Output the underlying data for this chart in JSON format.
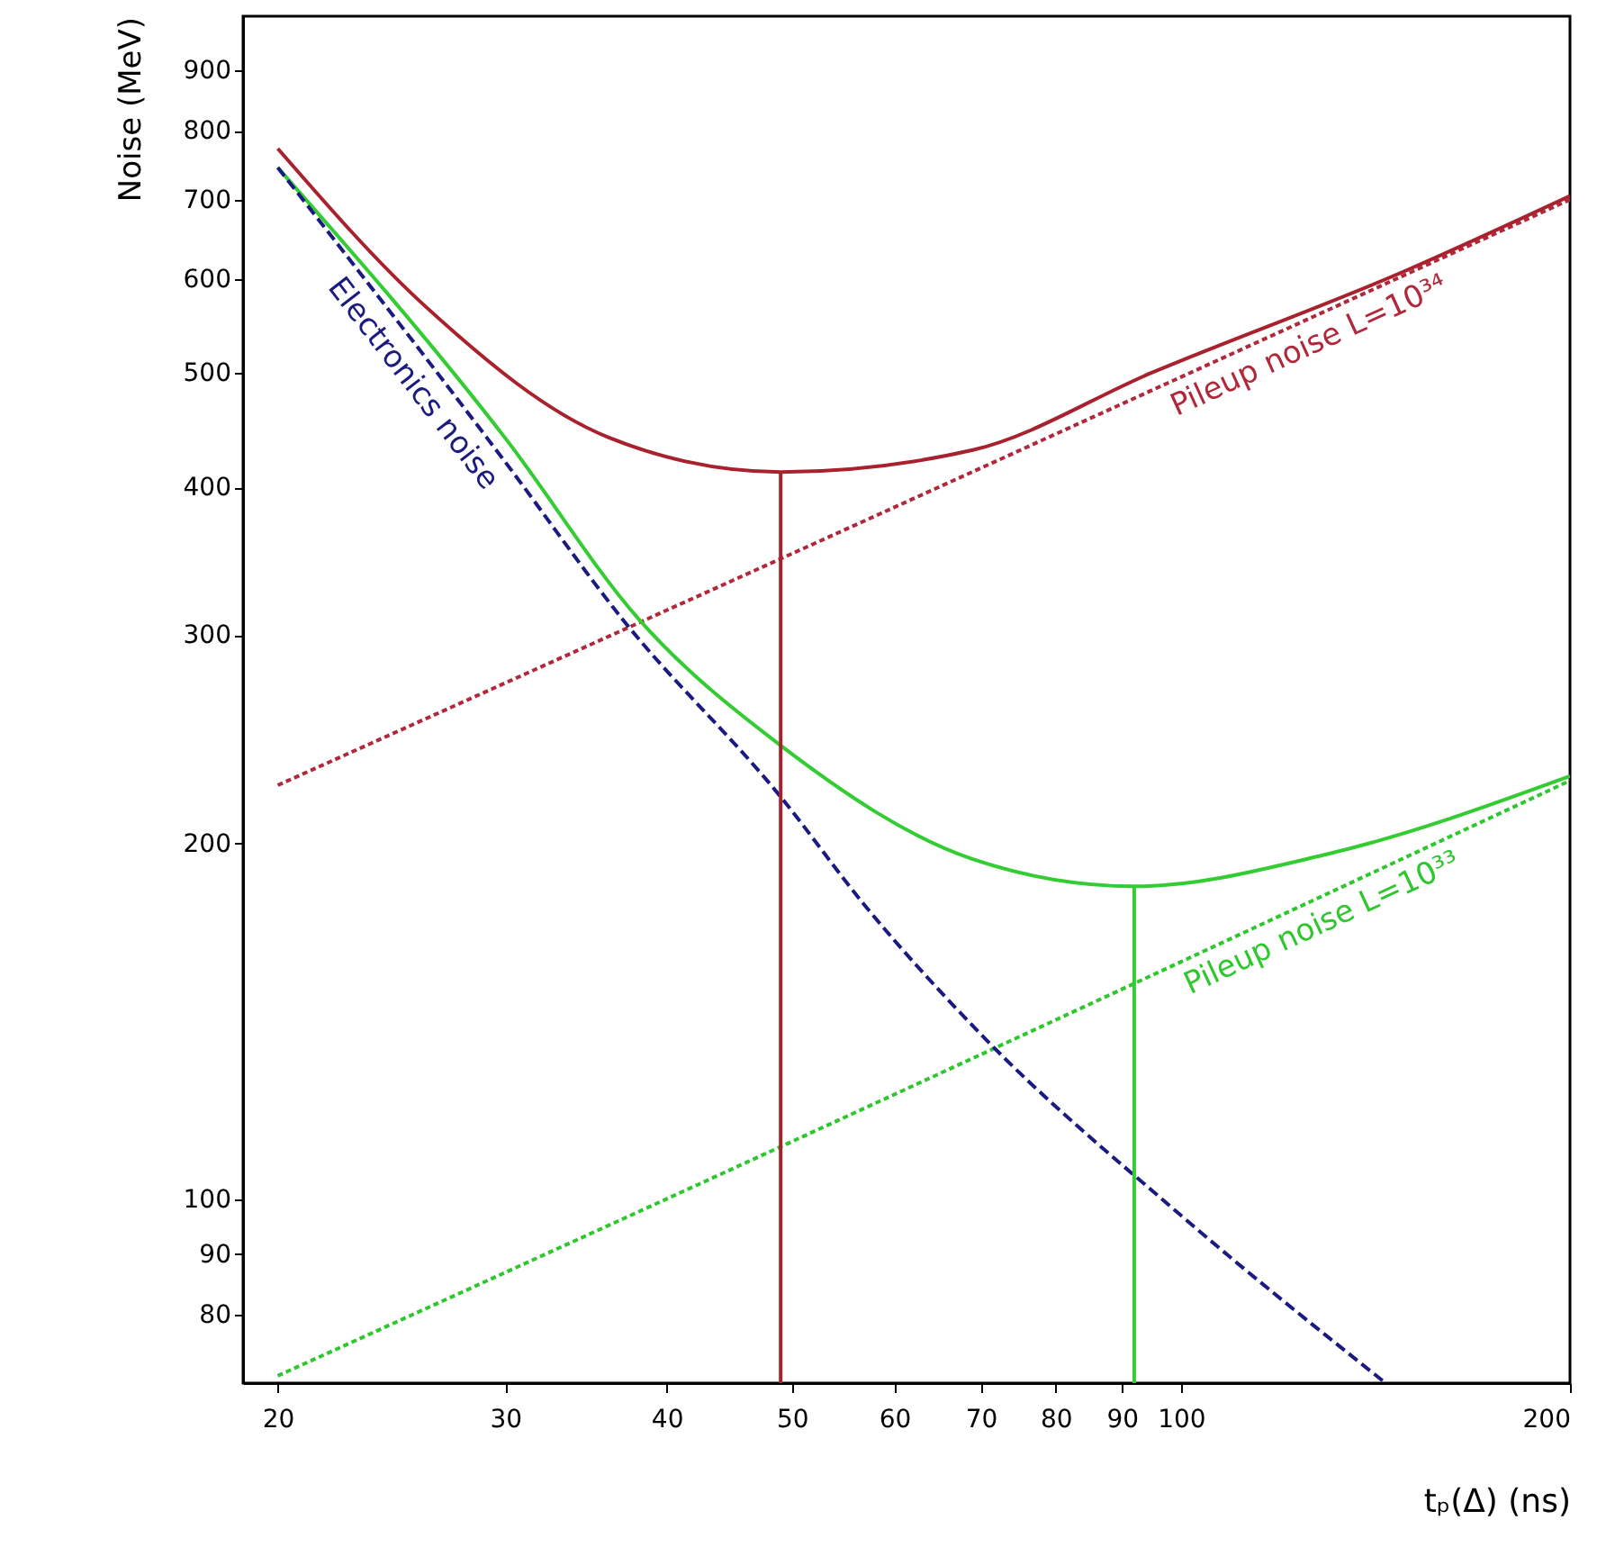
{
  "chart_data": {
    "type": "line",
    "xlabel": "tₚ(Δ) (ns)",
    "ylabel": "Noise (MeV)",
    "log": "xy",
    "grid": false,
    "xlim": [
      18.8,
      200
    ],
    "xticks": [
      20,
      30,
      40,
      50,
      60,
      70,
      80,
      90,
      100,
      200
    ],
    "ylim": [
      70,
      1000
    ],
    "yticks": [
      80,
      90,
      100,
      200,
      300,
      400,
      500,
      600,
      700,
      800,
      900
    ],
    "series": [
      {
        "color": "#a8222e",
        "line_style": "solid",
        "x": [
          20,
          26,
          36,
          49,
          69,
          95,
          150,
          200
        ],
        "values": [
          773,
          569,
          441,
          412,
          430,
          500,
          611,
          705
        ]
      },
      {
        "name": "Pileup noise L=10³⁴",
        "color": "#b0283a",
        "line_style": "dotted",
        "x": [
          20,
          49,
          200
        ],
        "values": [
          224,
          348,
          700
        ]
      },
      {
        "color": "#33cc33",
        "line_style": "solid",
        "x": [
          20,
          30,
          38,
          49,
          69,
          92,
          130,
          200
        ],
        "values": [
          745,
          440,
          310,
          242,
          194,
          184,
          196,
          228
        ]
      },
      {
        "name": "Pileup noise L=10³³",
        "color": "#2ec82e",
        "line_style": "dotted",
        "x": [
          20,
          50,
          200
        ],
        "values": [
          71,
          112,
          226
        ]
      },
      {
        "name": "Electronics noise",
        "color": "#1a1a80",
        "line_style": "dashed",
        "x": [
          20,
          30,
          37,
          49,
          57,
          70,
          100,
          144
        ],
        "values": [
          745,
          420,
          309,
          219,
          177,
          138,
          97,
          70
        ]
      },
      {
        "color": "#a8222e",
        "line_style": "solid",
        "x": [
          49,
          49
        ],
        "values": [
          70,
          412
        ]
      },
      {
        "color": "#33cc33",
        "line_style": "solid",
        "x": [
          92,
          92
        ],
        "values": [
          70,
          184
        ]
      }
    ]
  }
}
